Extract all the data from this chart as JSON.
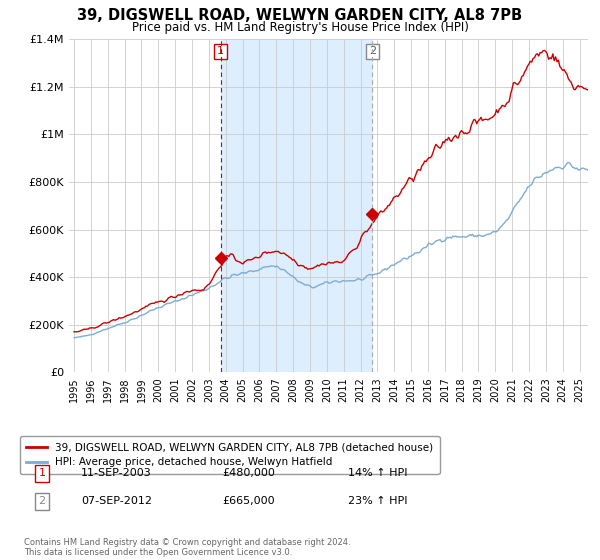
{
  "title": "39, DIGSWELL ROAD, WELWYN GARDEN CITY, AL8 7PB",
  "subtitle": "Price paid vs. HM Land Registry's House Price Index (HPI)",
  "legend_line1": "39, DIGSWELL ROAD, WELWYN GARDEN CITY, AL8 7PB (detached house)",
  "legend_line2": "HPI: Average price, detached house, Welwyn Hatfield",
  "footnote": "Contains HM Land Registry data © Crown copyright and database right 2024.\nThis data is licensed under the Open Government Licence v3.0.",
  "sale1_label": "1",
  "sale1_date": "11-SEP-2003",
  "sale1_price": "£480,000",
  "sale1_hpi": "14% ↑ HPI",
  "sale1_year": 2003.7,
  "sale1_value": 480000,
  "sale2_label": "2",
  "sale2_date": "07-SEP-2012",
  "sale2_price": "£665,000",
  "sale2_hpi": "23% ↑ HPI",
  "sale2_year": 2012.7,
  "sale2_value": 665000,
  "vline1_color": "#cc0000",
  "vline2_color": "#aaaaaa",
  "red_color": "#cc0000",
  "blue_color": "#7dadd4",
  "shade_color": "#ddeeff",
  "ylim": [
    0,
    1400000
  ],
  "xlim_start": 1995,
  "xlim_end": 2025.5,
  "background_color": "#ffffff",
  "grid_color": "#cccccc",
  "yticks": [
    0,
    200000,
    400000,
    600000,
    800000,
    1000000,
    1200000,
    1400000
  ],
  "ytick_labels": [
    "£0",
    "£200K",
    "£400K",
    "£600K",
    "£800K",
    "£1M",
    "£1.2M",
    "£1.4M"
  ]
}
